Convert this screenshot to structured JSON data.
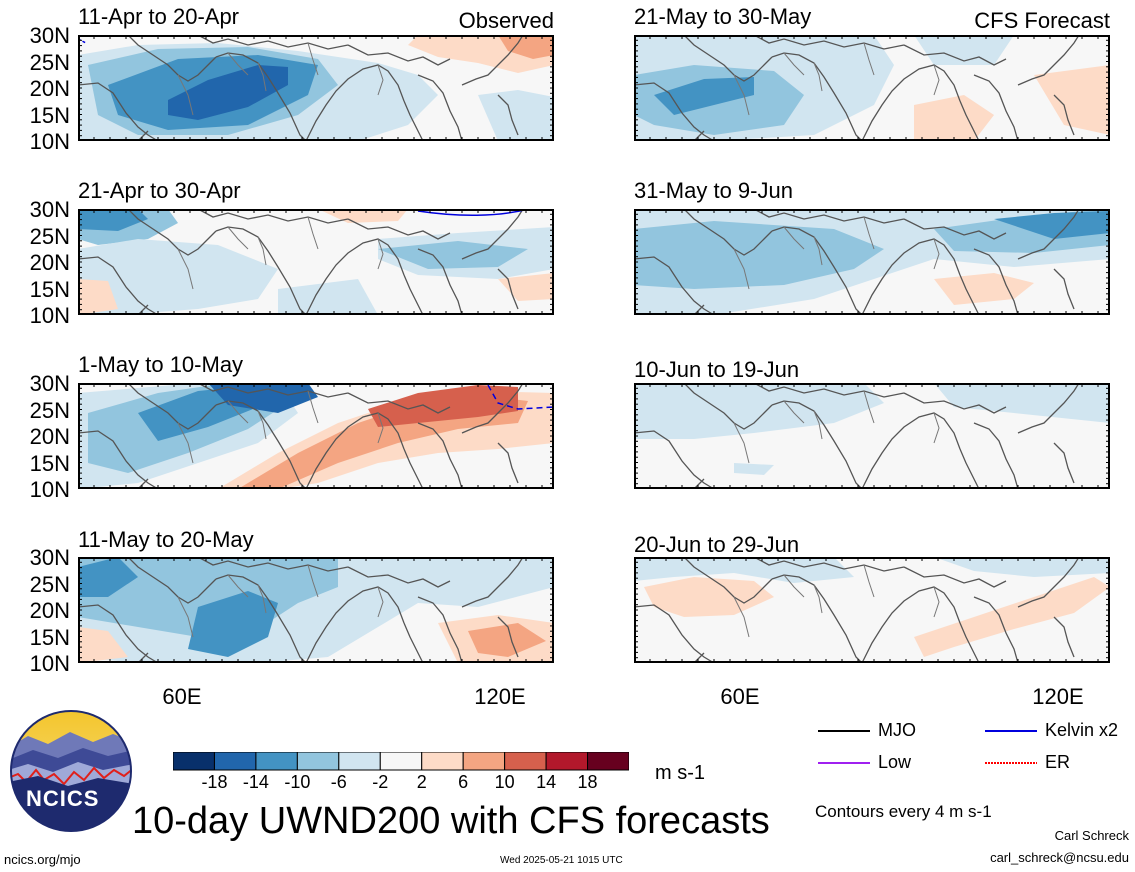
{
  "panels": [
    {
      "id": "p1",
      "title": "11-Apr to 20-Apr",
      "tag": "Observed"
    },
    {
      "id": "p2",
      "title": "21-Apr to 30-Apr",
      "tag": ""
    },
    {
      "id": "p3",
      "title": "1-May to 10-May",
      "tag": ""
    },
    {
      "id": "p4",
      "title": "11-May to 20-May",
      "tag": ""
    },
    {
      "id": "p5",
      "title": "21-May to 30-May",
      "tag": "CFS Forecast"
    },
    {
      "id": "p6",
      "title": "31-May to 9-Jun",
      "tag": ""
    },
    {
      "id": "p7",
      "title": "10-Jun to 19-Jun",
      "tag": ""
    },
    {
      "id": "p8",
      "title": "20-Jun to 29-Jun",
      "tag": ""
    }
  ],
  "y_ticks": [
    "30N",
    "25N",
    "20N",
    "15N",
    "10N"
  ],
  "x_ticks": [
    "60E",
    "120E"
  ],
  "colorbar": {
    "ticks": [
      "-18",
      "-14",
      "-10",
      "-6",
      "-2",
      "2",
      "6",
      "10",
      "14",
      "18"
    ],
    "units": "m s-1",
    "colors": [
      "#08306b",
      "#2166ac",
      "#4393c3",
      "#92c5de",
      "#d1e5f0",
      "#f7f7f7",
      "#fddbc7",
      "#f4a582",
      "#d6604d",
      "#b2182b",
      "#67001f"
    ]
  },
  "legend": {
    "items": [
      {
        "label": "MJO",
        "color": "#000000"
      },
      {
        "label": "Kelvin x2",
        "color": "#0000dd"
      },
      {
        "label": "Low",
        "color": "#a020f0"
      },
      {
        "label": "ER",
        "color": "#ff0000"
      }
    ],
    "contour_note": "Contours every 4 m s-1"
  },
  "main_title": "10-day UWND200 with CFS forecasts",
  "logo_text": "NCICS",
  "footer": {
    "left": "ncics.org/mjo",
    "center": "Wed 2025-05-21 1015 UTC",
    "author": "Carl Schreck",
    "email": "carl_schreck@ncsu.edu"
  }
}
